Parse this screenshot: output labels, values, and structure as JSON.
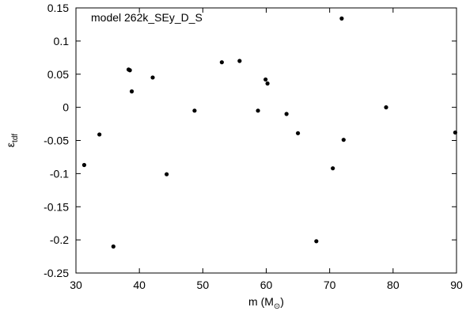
{
  "chart_data": {
    "type": "scatter",
    "key_label": "model 262k_SEy_D_S",
    "xlabel": {
      "base": "m (M",
      "sub": "⊙",
      "close": ")"
    },
    "ylabel": {
      "base": "ε",
      "sub": "tdf"
    },
    "xlim": [
      30,
      90
    ],
    "ylim": [
      -0.25,
      0.15
    ],
    "xticks": [
      30,
      40,
      50,
      60,
      70,
      80,
      90
    ],
    "xtick_labels": [
      "30",
      "40",
      "50",
      "60",
      "70",
      "80",
      "90"
    ],
    "yticks": [
      -0.25,
      -0.2,
      -0.15,
      -0.1,
      -0.05,
      0,
      0.05,
      0.1,
      0.15
    ],
    "ytick_labels": [
      "-0.25",
      "-0.2",
      "-0.15",
      "-0.1",
      "-0.05",
      "0",
      "0.05",
      "0.1",
      "0.15"
    ],
    "grid": false,
    "marker_color": "#000000",
    "points": [
      {
        "x": 31.3,
        "y": -0.087
      },
      {
        "x": 33.7,
        "y": -0.041
      },
      {
        "x": 35.9,
        "y": -0.21
      },
      {
        "x": 38.3,
        "y": 0.057
      },
      {
        "x": 38.5,
        "y": 0.056
      },
      {
        "x": 38.8,
        "y": 0.024
      },
      {
        "x": 42.1,
        "y": 0.045
      },
      {
        "x": 44.3,
        "y": -0.101
      },
      {
        "x": 48.7,
        "y": -0.005
      },
      {
        "x": 53.0,
        "y": 0.068
      },
      {
        "x": 55.8,
        "y": 0.07
      },
      {
        "x": 58.7,
        "y": -0.005
      },
      {
        "x": 59.9,
        "y": 0.042
      },
      {
        "x": 60.2,
        "y": 0.036
      },
      {
        "x": 63.2,
        "y": -0.01
      },
      {
        "x": 65.0,
        "y": -0.039
      },
      {
        "x": 67.9,
        "y": -0.202
      },
      {
        "x": 70.5,
        "y": -0.092
      },
      {
        "x": 71.9,
        "y": 0.134
      },
      {
        "x": 72.2,
        "y": -0.049
      },
      {
        "x": 78.9,
        "y": 0.0
      },
      {
        "x": 89.8,
        "y": -0.038
      }
    ]
  }
}
